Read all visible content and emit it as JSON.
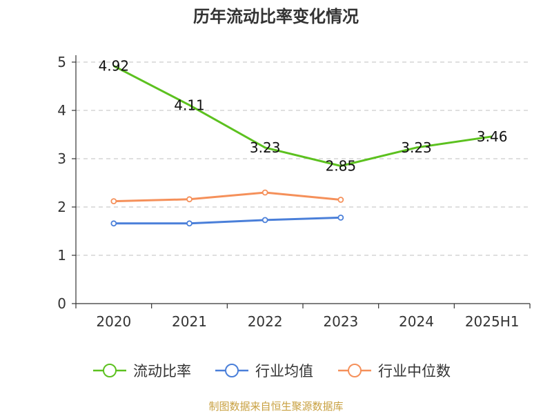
{
  "chart_data": {
    "type": "line",
    "title": "历年流动比率变化情况",
    "categories": [
      "2020",
      "2021",
      "2022",
      "2023",
      "2024",
      "2025H1"
    ],
    "ylim": [
      0,
      5
    ],
    "yticks": [
      0,
      1,
      2,
      3,
      4,
      5
    ],
    "grid": true,
    "legend_position": "bottom",
    "series": [
      {
        "name": "流动比率",
        "color": "#5cc11f",
        "values": [
          4.92,
          4.11,
          3.23,
          2.85,
          3.23,
          3.46
        ],
        "labels": true,
        "markers": false
      },
      {
        "name": "行业均值",
        "color": "#4a7fd9",
        "values": [
          1.66,
          1.66,
          1.73,
          1.78,
          null,
          null
        ],
        "labels": false,
        "markers": true
      },
      {
        "name": "行业中位数",
        "color": "#f5905a",
        "values": [
          2.12,
          2.16,
          2.3,
          2.15,
          null,
          null
        ],
        "labels": false,
        "markers": true
      }
    ]
  },
  "source_text": "制图数据来自恒生聚源数据库"
}
